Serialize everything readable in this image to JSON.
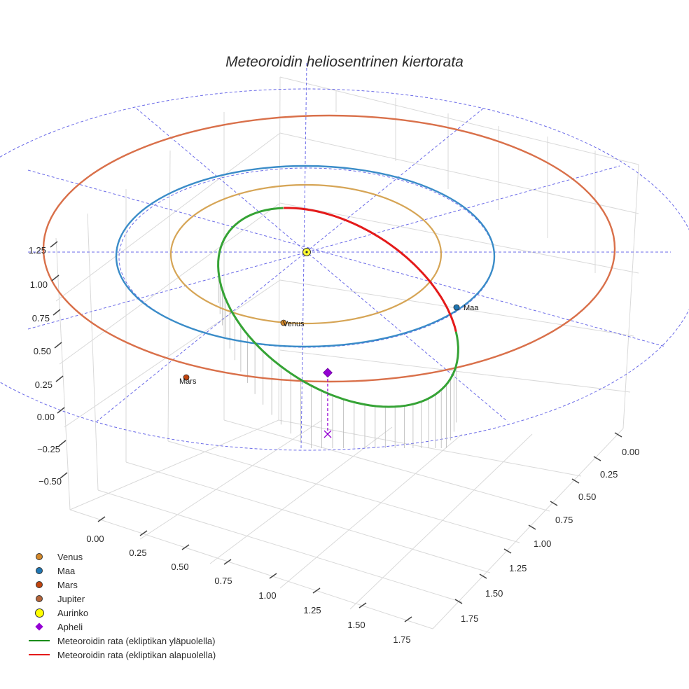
{
  "chart_data": {
    "type": "scatter",
    "mode": "3d",
    "title": "Meteoroidin heliosentrinen kiertorata",
    "x_ticks": [
      "0.00",
      "0.25",
      "0.50",
      "0.75",
      "1.00",
      "1.25",
      "1.50",
      "1.75"
    ],
    "y_ticks": [
      "0.00",
      "0.25",
      "0.50",
      "0.75",
      "1.00",
      "1.25",
      "1.50",
      "1.75"
    ],
    "z_ticks": [
      "1.25",
      "1.00",
      "0.75",
      "0.50",
      "0.25",
      "0.00",
      "−0.25",
      "−0.50"
    ],
    "grid": true,
    "legend_position": "bottom-left",
    "bodies": [
      {
        "name": "Venus",
        "label": "Venus",
        "color": "#d4892a",
        "orbit_color": "#d6a556",
        "orbit_radius_au": 0.723,
        "angle_deg": 262
      },
      {
        "name": "Maa",
        "label": "Maa",
        "color": "#1f77b4",
        "orbit_color": "#3a8cc8",
        "orbit_radius_au": 1.0,
        "angle_deg": -31
      },
      {
        "name": "Mars",
        "label": "Mars",
        "color": "#c1440e",
        "orbit_color": "#d9704a",
        "orbit_radius_au": 1.524,
        "angle_deg": 216
      },
      {
        "name": "Jupiter",
        "label": "",
        "color": "#b5653a",
        "orbit_color": "",
        "orbit_radius_au": null,
        "angle_deg": null
      },
      {
        "name": "Aurinko",
        "label": "",
        "color": "#ffff00",
        "orbit_color": "",
        "orbit_radius_au": 0,
        "angle_deg": 0
      }
    ],
    "meteoroid_orbit": {
      "aphelion_distance_au": 1.3,
      "perihelion_distance_au": 0.42,
      "aphelion_angle_deg": 268,
      "inclination_deg": 10,
      "above_ecliptic_color": "#2e9e2e",
      "below_ecliptic_color": "#e02020"
    },
    "apheli": {
      "name": "Apheli",
      "color": "#9400d3"
    },
    "ecliptic_reference_color": "#6a6ae8"
  },
  "legend": {
    "items": [
      {
        "label": "Venus",
        "kind": "dot",
        "color": "#d4892a"
      },
      {
        "label": "Maa",
        "kind": "dot",
        "color": "#1f77b4"
      },
      {
        "label": "Mars",
        "kind": "dot",
        "color": "#c1440e"
      },
      {
        "label": "Jupiter",
        "kind": "dot",
        "color": "#b5653a"
      },
      {
        "label": "Aurinko",
        "kind": "big",
        "color": "#ffff00"
      },
      {
        "label": "Apheli",
        "kind": "diamond",
        "color": "#9400d3"
      },
      {
        "label": "Meteoroidin rata (ekliptikan yläpuolella)",
        "kind": "line",
        "color": "#1a8c1a"
      },
      {
        "label": "Meteoroidin rata (ekliptikan alapuolella)",
        "kind": "line",
        "color": "#e41a1a"
      }
    ]
  }
}
